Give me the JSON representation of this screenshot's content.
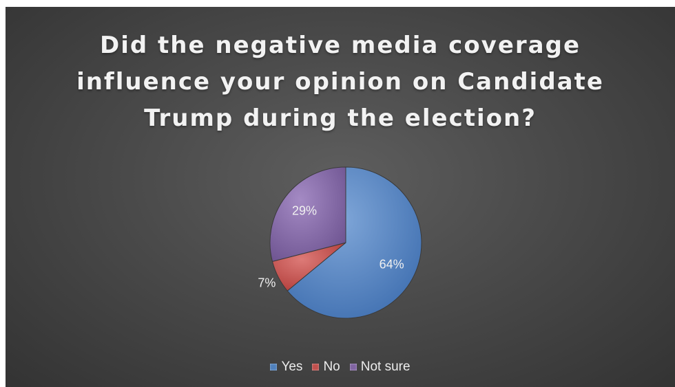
{
  "chart_data": {
    "type": "pie",
    "title": "Did the negative media coverage\ninfluence your opinion on Candidate\nTrump during the election?",
    "categories": [
      "Yes",
      "No",
      "Not sure"
    ],
    "values": [
      64,
      7,
      29
    ],
    "labels": [
      "64%",
      "7%",
      "29%"
    ],
    "colors": [
      "#4f81bd",
      "#c0504d",
      "#8064a2"
    ],
    "legend_position": "bottom"
  },
  "legend": {
    "items": [
      {
        "label": "Yes",
        "color": "#4f81bd"
      },
      {
        "label": "No",
        "color": "#c0504d"
      },
      {
        "label": "Not sure",
        "color": "#8064a2"
      }
    ]
  }
}
